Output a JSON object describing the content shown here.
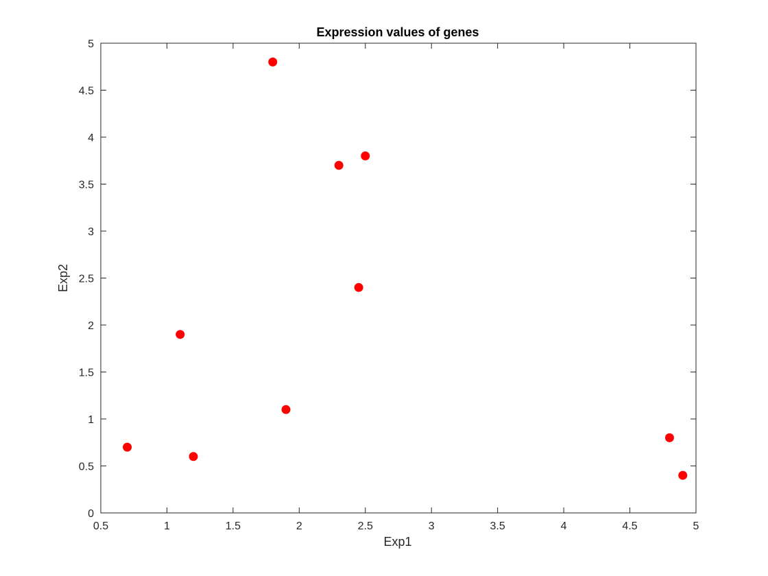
{
  "chart_data": {
    "type": "scatter",
    "title": "Expression values of genes",
    "xlabel": "Exp1",
    "ylabel": "Exp2",
    "xlim": [
      0.5,
      5
    ],
    "ylim": [
      0,
      5
    ],
    "xticks": [
      0.5,
      1,
      1.5,
      2,
      2.5,
      3,
      3.5,
      4,
      4.5,
      5
    ],
    "yticks": [
      0,
      0.5,
      1,
      1.5,
      2,
      2.5,
      3,
      3.5,
      4,
      4.5,
      5
    ],
    "xtick_labels": [
      "0.5",
      "1",
      "1.5",
      "2",
      "2.5",
      "3",
      "3.5",
      "4",
      "4.5",
      "5"
    ],
    "ytick_labels": [
      "0",
      "0.5",
      "1",
      "1.5",
      "2",
      "2.5",
      "3",
      "3.5",
      "4",
      "4.5",
      "5"
    ],
    "grid": false,
    "legend": false,
    "marker_color": "#ff0000",
    "series": [
      {
        "points": [
          {
            "x": 0.7,
            "y": 0.7
          },
          {
            "x": 1.1,
            "y": 1.9
          },
          {
            "x": 1.2,
            "y": 0.6
          },
          {
            "x": 1.8,
            "y": 4.8
          },
          {
            "x": 1.9,
            "y": 1.1
          },
          {
            "x": 2.3,
            "y": 3.7
          },
          {
            "x": 2.45,
            "y": 2.4
          },
          {
            "x": 2.5,
            "y": 3.8
          },
          {
            "x": 4.8,
            "y": 0.8
          },
          {
            "x": 4.9,
            "y": 0.4
          }
        ]
      }
    ]
  }
}
